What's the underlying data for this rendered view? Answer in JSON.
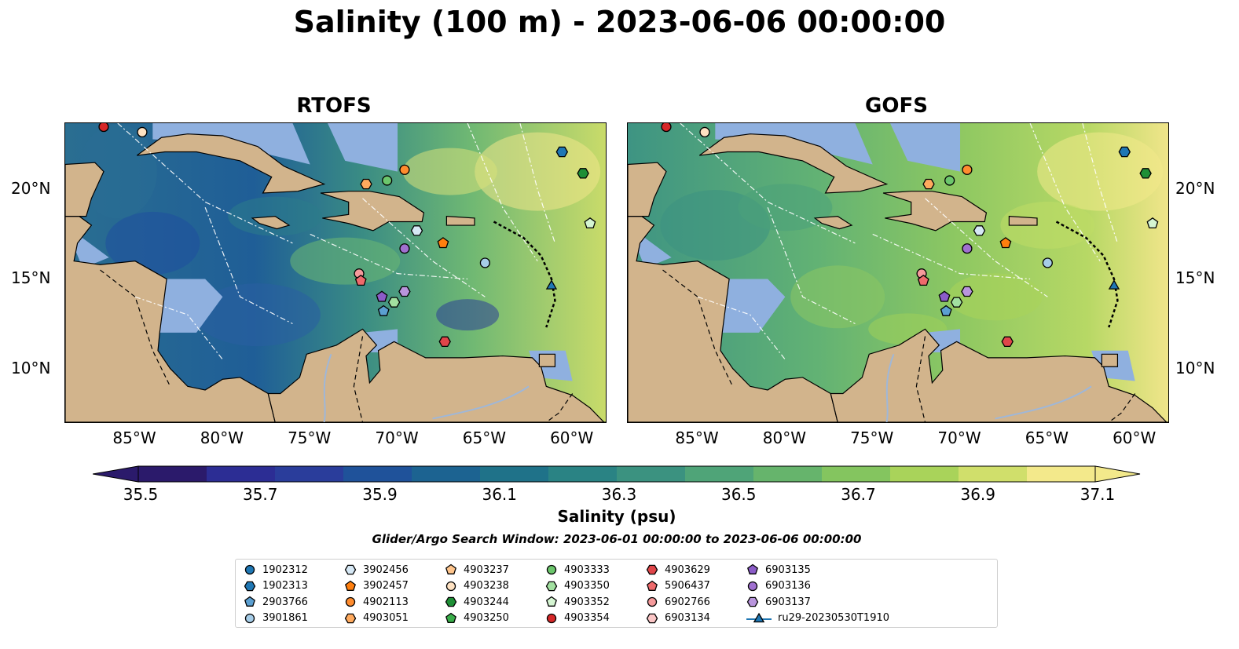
{
  "title": "Salinity (100 m) - 2023-06-06 00:00:00",
  "panels": [
    {
      "title": "RTOFS",
      "tone": "rtofs"
    },
    {
      "title": "GOFS",
      "tone": "gofs"
    }
  ],
  "lon_ticks": [
    "85°W",
    "80°W",
    "75°W",
    "70°W",
    "65°W",
    "60°W"
  ],
  "lat_ticks": [
    "20°N",
    "15°N",
    "10°N"
  ],
  "colorbar": {
    "label": "Salinity (psu)",
    "ticks": [
      "35.5",
      "35.7",
      "35.9",
      "36.1",
      "36.3",
      "36.5",
      "36.7",
      "36.9",
      "37.1"
    ],
    "colors": [
      "#2b1a6b",
      "#2c2d94",
      "#2a3d9b",
      "#1f529a",
      "#1c6391",
      "#1f7289",
      "#2a8384",
      "#3b9280",
      "#4fa478",
      "#66b46c",
      "#84c55f",
      "#a9d35a",
      "#d0df6b",
      "#f3e98b"
    ]
  },
  "search_window": "Glider/Argo Search Window: 2023-06-01 00:00:00 to 2023-06-06 00:00:00",
  "legend": [
    {
      "label": "1902312",
      "marker": "circle",
      "color": "#1f77b4"
    },
    {
      "label": "1902313",
      "marker": "hexagon",
      "color": "#1f77b4"
    },
    {
      "label": "2903766",
      "marker": "pentagon",
      "color": "#5b9fd1"
    },
    {
      "label": "3901861",
      "marker": "circle",
      "color": "#a6cde8"
    },
    {
      "label": "3902456",
      "marker": "hexagon",
      "color": "#d6e8f5"
    },
    {
      "label": "3902457",
      "marker": "pentagon",
      "color": "#ff7f0e"
    },
    {
      "label": "4902113",
      "marker": "circle",
      "color": "#ff8c2e"
    },
    {
      "label": "4903051",
      "marker": "hexagon",
      "color": "#ffaa5e"
    },
    {
      "label": "4903237",
      "marker": "pentagon",
      "color": "#ffc58c"
    },
    {
      "label": "4903238",
      "marker": "circle",
      "color": "#ffe2c2"
    },
    {
      "label": "4903244",
      "marker": "hexagon",
      "color": "#1e8f36"
    },
    {
      "label": "4903250",
      "marker": "pentagon",
      "color": "#3aae4a"
    },
    {
      "label": "4903333",
      "marker": "circle",
      "color": "#6cc66c"
    },
    {
      "label": "4903350",
      "marker": "hexagon",
      "color": "#a2e0a0"
    },
    {
      "label": "4903352",
      "marker": "pentagon",
      "color": "#d5f5d2"
    },
    {
      "label": "4903354",
      "marker": "circle",
      "color": "#d62728"
    },
    {
      "label": "4903629",
      "marker": "hexagon",
      "color": "#e0464a"
    },
    {
      "label": "5906437",
      "marker": "pentagon",
      "color": "#ee6a6c"
    },
    {
      "label": "6902766",
      "marker": "circle",
      "color": "#f59a9b"
    },
    {
      "label": "6903134",
      "marker": "hexagon",
      "color": "#fbc6c6"
    },
    {
      "label": "6903135",
      "marker": "pentagon",
      "color": "#8b5cc8"
    },
    {
      "label": "6903136",
      "marker": "circle",
      "color": "#a070d0"
    },
    {
      "label": "6903137",
      "marker": "hexagon",
      "color": "#b995dd"
    },
    {
      "label": "ru29-20230530T1910",
      "marker": "triangle",
      "color": "#1f77b4"
    }
  ],
  "markers": [
    {
      "id": "4903354",
      "lon": -86.8,
      "lat": 23.5
    },
    {
      "id": "4903238",
      "lon": -84.6,
      "lat": 23.2
    },
    {
      "id": "4903051",
      "lon": -71.8,
      "lat": 20.3
    },
    {
      "id": "4903333",
      "lon": -70.6,
      "lat": 20.5
    },
    {
      "id": "4902113",
      "lon": -69.6,
      "lat": 21.1
    },
    {
      "id": "1902313",
      "lon": -60.6,
      "lat": 22.1
    },
    {
      "id": "4903244",
      "lon": -59.4,
      "lat": 20.9
    },
    {
      "id": "4903352",
      "lon": -59.0,
      "lat": 18.1
    },
    {
      "id": "3902456",
      "lon": -68.9,
      "lat": 17.7
    },
    {
      "id": "3902457",
      "lon": -67.4,
      "lat": 17.0
    },
    {
      "id": "6903136",
      "lon": -69.6,
      "lat": 16.7
    },
    {
      "id": "3901861",
      "lon": -65.0,
      "lat": 15.9
    },
    {
      "id": "6902766",
      "lon": -72.2,
      "lat": 15.3
    },
    {
      "id": "5906437",
      "lon": -72.1,
      "lat": 14.9
    },
    {
      "id": "6903135",
      "lon": -70.9,
      "lat": 14.0
    },
    {
      "id": "4903350",
      "lon": -70.2,
      "lat": 13.7
    },
    {
      "id": "6903137",
      "lon": -69.6,
      "lat": 14.3
    },
    {
      "id": "2903766",
      "lon": -70.8,
      "lat": 13.2
    },
    {
      "id": "4903629",
      "lon": -67.3,
      "lat": 11.5
    },
    {
      "id": "ru29-20230530T1910",
      "lon": -61.2,
      "lat": 14.6
    }
  ]
}
